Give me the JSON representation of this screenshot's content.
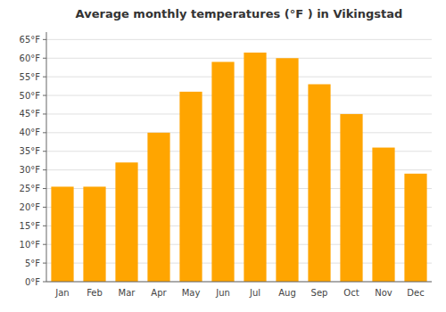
{
  "chart_data": {
    "type": "bar",
    "title": "Average monthly temperatures (°F ) in Vikingstad",
    "categories": [
      "Jan",
      "Feb",
      "Mar",
      "Apr",
      "May",
      "Jun",
      "Jul",
      "Aug",
      "Sep",
      "Oct",
      "Nov",
      "Dec"
    ],
    "values": [
      25.5,
      25.5,
      32,
      40,
      51,
      59,
      61.5,
      60,
      53,
      45,
      36,
      29
    ],
    "color": "#FFA500",
    "ylim": [
      0,
      67
    ],
    "yticks": [
      {
        "value": 0,
        "label": "0°F"
      },
      {
        "value": 5,
        "label": "5°F"
      },
      {
        "value": 10,
        "label": "10°F"
      },
      {
        "value": 15,
        "label": "15°F"
      },
      {
        "value": 20,
        "label": "20°F"
      },
      {
        "value": 25,
        "label": "25°F"
      },
      {
        "value": 30,
        "label": "30°F"
      },
      {
        "value": 35,
        "label": "35°F"
      },
      {
        "value": 40,
        "label": "40°F"
      },
      {
        "value": 45,
        "label": "45°F"
      },
      {
        "value": 50,
        "label": "50°F"
      },
      {
        "value": 55,
        "label": "55°F"
      },
      {
        "value": 60,
        "label": "60°F"
      },
      {
        "value": 65,
        "label": "65°F"
      }
    ],
    "grid": true
  }
}
